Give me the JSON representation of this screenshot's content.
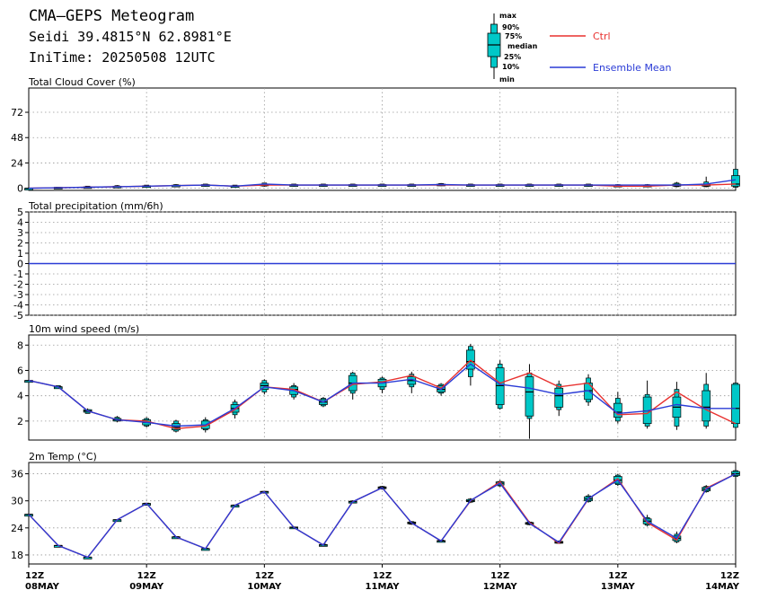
{
  "header": {
    "title": "CMA—GEPS Meteogram",
    "location": "Seidi 39.4815°N 62.8981°E",
    "init": "IniTime: 20250508 12UTC"
  },
  "legend": {
    "box_labels": [
      "max",
      "90%",
      "75%",
      "median",
      "25%",
      "10%",
      "min"
    ],
    "ctrl_label": "Ctrl",
    "mean_label": "Ensemble Mean",
    "ctrl_color": "#e8312f",
    "mean_color": "#2a3bd6",
    "box_color": "#00c8c8"
  },
  "x_axis": {
    "ticks": [
      {
        "t": 0,
        "hour": "12Z",
        "date": "08MAY"
      },
      {
        "t": 24,
        "hour": "12Z",
        "date": "09MAY"
      },
      {
        "t": 48,
        "hour": "12Z",
        "date": "10MAY"
      },
      {
        "t": 72,
        "hour": "12Z",
        "date": "11MAY"
      },
      {
        "t": 96,
        "hour": "12Z",
        "date": "12MAY"
      },
      {
        "t": 120,
        "hour": "12Z",
        "date": "13MAY"
      },
      {
        "t": 144,
        "hour": "12Z",
        "date": "14MAY"
      }
    ]
  },
  "chart_data": [
    {
      "type": "boxplot-line",
      "title": "Total Cloud Cover (%)",
      "ylim": [
        -2,
        95
      ],
      "yticks": [
        0,
        24,
        48,
        72
      ],
      "grid": true,
      "x": [
        0,
        6,
        12,
        18,
        24,
        30,
        36,
        42,
        48,
        54,
        60,
        66,
        72,
        78,
        84,
        90,
        96,
        102,
        108,
        114,
        120,
        126,
        132,
        138,
        144
      ],
      "series": [
        {
          "name": "Ctrl",
          "values": [
            0,
            0.5,
            1,
            1.5,
            2,
            2.5,
            3,
            2,
            3,
            3,
            3,
            3,
            3,
            3,
            3,
            3,
            3,
            3,
            3,
            3,
            2,
            2,
            3,
            3,
            4
          ]
        },
        {
          "name": "Ensemble Mean",
          "values": [
            0,
            0.5,
            1,
            1.5,
            2,
            2.5,
            3,
            2,
            4,
            3,
            3,
            3,
            3,
            3,
            3.5,
            3,
            3,
            3,
            3,
            3,
            3,
            3,
            3,
            4,
            8
          ]
        }
      ],
      "boxes": [
        [
          0,
          0,
          0,
          0,
          0,
          0,
          0
        ],
        [
          0,
          0,
          0,
          0.5,
          1,
          1,
          1
        ],
        [
          0,
          0,
          0.5,
          1,
          1.5,
          2,
          2
        ],
        [
          0.5,
          1,
          1.5,
          1.5,
          2,
          2.5,
          3
        ],
        [
          1,
          1.5,
          1.5,
          2,
          2.5,
          3,
          3
        ],
        [
          1,
          1.5,
          2,
          2.5,
          3,
          3.5,
          4
        ],
        [
          1.5,
          2,
          2.5,
          3,
          3.5,
          4,
          4
        ],
        [
          1,
          1.5,
          2,
          2,
          2.5,
          3,
          3
        ],
        [
          1.5,
          2,
          2.5,
          3,
          4,
          5,
          5
        ],
        [
          1.5,
          2,
          2.5,
          3,
          3.5,
          4,
          4
        ],
        [
          1.5,
          2,
          2.5,
          3,
          3.5,
          4,
          4
        ],
        [
          2,
          2,
          2.5,
          3,
          3.5,
          4,
          4
        ],
        [
          2,
          2,
          2.5,
          3,
          3.5,
          4,
          4
        ],
        [
          2,
          2,
          2.5,
          3,
          3.5,
          4,
          4
        ],
        [
          2,
          2.5,
          3,
          3,
          4,
          4.5,
          5
        ],
        [
          2,
          2,
          2.5,
          3,
          3.5,
          4,
          4
        ],
        [
          2,
          2,
          2.5,
          3,
          3.5,
          4,
          4
        ],
        [
          1.5,
          2,
          2.5,
          3,
          3.5,
          4,
          4
        ],
        [
          1.5,
          2,
          2.5,
          3,
          3.5,
          4,
          4
        ],
        [
          1.5,
          2,
          2.5,
          3,
          3.5,
          4,
          4
        ],
        [
          1,
          1.5,
          2,
          2.5,
          3,
          3.5,
          4
        ],
        [
          1,
          1.5,
          2,
          2.5,
          3,
          3.5,
          4
        ],
        [
          1,
          1.5,
          2,
          3,
          4,
          5,
          6
        ],
        [
          1,
          1.5,
          2,
          3,
          4,
          6,
          11
        ],
        [
          0,
          1,
          2,
          4,
          12,
          18,
          20
        ]
      ]
    },
    {
      "type": "boxplot-line",
      "title": "Total precipitation (mm/6h)",
      "ylim": [
        -5,
        5
      ],
      "yticks": [
        -5,
        -4,
        -3,
        -2,
        -1,
        0,
        1,
        2,
        3,
        4,
        5
      ],
      "grid": true,
      "x": [
        0,
        6,
        12,
        18,
        24,
        30,
        36,
        42,
        48,
        54,
        60,
        66,
        72,
        78,
        84,
        90,
        96,
        102,
        108,
        114,
        120,
        126,
        132,
        138,
        144
      ],
      "series": [
        {
          "name": "Ctrl",
          "values": [
            0,
            0,
            0,
            0,
            0,
            0,
            0,
            0,
            0,
            0,
            0,
            0,
            0,
            0,
            0,
            0,
            0,
            0,
            0,
            0,
            0,
            0,
            0,
            0,
            0
          ]
        },
        {
          "name": "Ensemble Mean",
          "values": [
            0,
            0,
            0,
            0,
            0,
            0,
            0,
            0,
            0,
            0,
            0,
            0,
            0,
            0,
            0,
            0,
            0,
            0,
            0,
            0,
            0,
            0,
            0,
            0,
            0
          ]
        }
      ],
      "boxes": []
    },
    {
      "type": "boxplot-line",
      "title": "10m wind speed (m/s)",
      "ylim": [
        0.5,
        8.8
      ],
      "yticks": [
        2,
        4,
        6,
        8
      ],
      "grid": true,
      "x": [
        0,
        6,
        12,
        18,
        24,
        30,
        36,
        42,
        48,
        54,
        60,
        66,
        72,
        78,
        84,
        90,
        96,
        102,
        108,
        114,
        120,
        126,
        132,
        138,
        144
      ],
      "series": [
        {
          "name": "Ctrl",
          "values": [
            5.2,
            4.7,
            2.8,
            2.1,
            2.0,
            1.4,
            1.6,
            2.9,
            4.7,
            4.5,
            3.5,
            4.9,
            5.1,
            5.6,
            4.6,
            6.8,
            5.0,
            5.8,
            4.7,
            5.0,
            2.5,
            2.6,
            4.3,
            2.9,
            1.8
          ]
        },
        {
          "name": "Ensemble Mean",
          "values": [
            5.2,
            4.7,
            2.8,
            2.1,
            1.9,
            1.6,
            1.7,
            3.0,
            4.7,
            4.4,
            3.5,
            5.0,
            5.0,
            5.3,
            4.5,
            6.5,
            4.9,
            4.6,
            4.1,
            4.4,
            2.6,
            2.8,
            3.3,
            3.0,
            3.0
          ]
        }
      ],
      "boxes": [
        [
          5.2,
          5.2,
          5.2,
          5.2,
          5.2,
          5.2,
          5.2
        ],
        [
          4.6,
          4.6,
          4.7,
          4.7,
          4.7,
          4.8,
          4.8
        ],
        [
          2.6,
          2.6,
          2.7,
          2.8,
          2.9,
          2.9,
          3.0
        ],
        [
          1.9,
          2.0,
          2.0,
          2.1,
          2.2,
          2.3,
          2.4
        ],
        [
          1.5,
          1.6,
          1.7,
          1.9,
          2.1,
          2.2,
          2.3
        ],
        [
          1.1,
          1.2,
          1.3,
          1.5,
          1.8,
          2.0,
          2.1
        ],
        [
          1.1,
          1.3,
          1.4,
          1.7,
          2.0,
          2.1,
          2.3
        ],
        [
          2.2,
          2.5,
          2.7,
          3.0,
          3.3,
          3.5,
          3.7
        ],
        [
          4.1,
          4.3,
          4.5,
          4.8,
          5.0,
          5.2,
          5.3
        ],
        [
          3.7,
          3.9,
          4.1,
          4.5,
          4.7,
          4.8,
          5.0
        ],
        [
          3.1,
          3.2,
          3.3,
          3.5,
          3.7,
          3.8,
          3.9
        ],
        [
          3.7,
          4.2,
          4.4,
          5.0,
          5.6,
          5.8,
          5.9
        ],
        [
          4.2,
          4.5,
          4.7,
          5.1,
          5.3,
          5.4,
          5.5
        ],
        [
          4.2,
          4.7,
          4.9,
          5.2,
          5.5,
          5.7,
          5.9
        ],
        [
          4.0,
          4.2,
          4.3,
          4.5,
          4.8,
          4.9,
          5.0
        ],
        [
          4.8,
          5.5,
          6.1,
          6.7,
          7.6,
          7.9,
          8.1
        ],
        [
          2.9,
          3.0,
          3.3,
          4.8,
          6.2,
          6.5,
          6.8
        ],
        [
          0.6,
          2.2,
          2.4,
          4.3,
          5.5,
          5.8,
          6.5
        ],
        [
          2.4,
          2.9,
          3.1,
          4.0,
          4.6,
          4.9,
          5.2
        ],
        [
          3.2,
          3.5,
          3.7,
          4.4,
          5.0,
          5.4,
          5.7
        ],
        [
          1.8,
          2.0,
          2.3,
          2.7,
          3.4,
          3.8,
          4.3
        ],
        [
          1.4,
          1.6,
          1.8,
          2.8,
          3.9,
          4.1,
          5.2
        ],
        [
          1.3,
          1.6,
          2.3,
          3.1,
          3.9,
          4.5,
          5.1
        ],
        [
          1.4,
          1.6,
          2.0,
          3.1,
          4.4,
          4.9,
          5.8
        ],
        [
          1.4,
          1.5,
          1.8,
          3.0,
          4.9,
          5.0,
          5.1
        ]
      ]
    },
    {
      "type": "boxplot-line",
      "title": "2m Temp (°C)",
      "ylim": [
        16,
        38.5
      ],
      "yticks": [
        18,
        24,
        30,
        36
      ],
      "grid": true,
      "x": [
        0,
        6,
        12,
        18,
        24,
        30,
        36,
        42,
        48,
        54,
        60,
        66,
        72,
        78,
        84,
        90,
        96,
        102,
        108,
        114,
        120,
        126,
        132,
        138,
        144
      ],
      "series": [
        {
          "name": "Ctrl",
          "values": [
            27.0,
            20.1,
            17.5,
            25.8,
            29.4,
            22.0,
            19.4,
            29.0,
            32.0,
            24.1,
            20.2,
            29.8,
            32.9,
            25.1,
            21.1,
            30.0,
            34.2,
            25.2,
            20.6,
            30.4,
            34.9,
            25.2,
            21.3,
            32.8,
            36.0
          ]
        },
        {
          "name": "Ensemble Mean",
          "values": [
            27.0,
            20.1,
            17.5,
            25.8,
            29.4,
            22.0,
            19.4,
            29.0,
            32.0,
            24.1,
            20.2,
            29.8,
            32.9,
            25.1,
            21.1,
            30.1,
            33.9,
            25.0,
            20.8,
            30.5,
            34.6,
            25.5,
            21.7,
            32.6,
            36.0
          ]
        }
      ],
      "boxes": [
        [
          27.0,
          27.0,
          27.0,
          27.0,
          27.0,
          27.0,
          27.0
        ],
        [
          20.1,
          20.1,
          20.1,
          20.1,
          20.1,
          20.1,
          20.1
        ],
        [
          17.5,
          17.5,
          17.5,
          17.5,
          17.5,
          17.5,
          17.5
        ],
        [
          25.8,
          25.8,
          25.8,
          25.8,
          25.8,
          25.8,
          25.8
        ],
        [
          29.3,
          29.3,
          29.4,
          29.4,
          29.4,
          29.5,
          29.5
        ],
        [
          21.9,
          21.9,
          22.0,
          22.0,
          22.0,
          22.1,
          22.1
        ],
        [
          19.3,
          19.3,
          19.4,
          19.4,
          19.4,
          19.5,
          19.5
        ],
        [
          28.9,
          28.9,
          29.0,
          29.0,
          29.0,
          29.1,
          29.1
        ],
        [
          31.8,
          31.9,
          31.9,
          32.0,
          32.1,
          32.1,
          32.2
        ],
        [
          23.9,
          24.0,
          24.0,
          24.1,
          24.2,
          24.2,
          24.3
        ],
        [
          19.9,
          20.0,
          20.1,
          20.2,
          20.3,
          20.4,
          20.5
        ],
        [
          29.5,
          29.6,
          29.7,
          29.8,
          29.9,
          30.0,
          30.1
        ],
        [
          32.5,
          32.6,
          32.7,
          32.9,
          33.1,
          33.2,
          33.3
        ],
        [
          24.7,
          24.8,
          24.9,
          25.1,
          25.3,
          25.4,
          25.5
        ],
        [
          20.8,
          20.9,
          21.0,
          21.1,
          21.2,
          21.3,
          21.4
        ],
        [
          29.5,
          29.7,
          29.8,
          30.0,
          30.3,
          30.4,
          30.6
        ],
        [
          33.1,
          33.3,
          33.5,
          33.9,
          34.2,
          34.3,
          34.6
        ],
        [
          24.6,
          24.7,
          24.8,
          25.0,
          25.2,
          25.3,
          25.5
        ],
        [
          20.5,
          20.6,
          20.7,
          20.8,
          21.0,
          21.1,
          21.2
        ],
        [
          29.6,
          29.8,
          30.0,
          30.4,
          30.9,
          31.1,
          31.5
        ],
        [
          33.3,
          33.6,
          33.9,
          34.6,
          35.4,
          35.7,
          36.0
        ],
        [
          24.3,
          24.6,
          24.9,
          25.5,
          26.0,
          26.3,
          26.9
        ],
        [
          20.6,
          20.9,
          21.2,
          21.7,
          22.2,
          22.6,
          23.2
        ],
        [
          31.8,
          32.0,
          32.2,
          32.6,
          33.0,
          33.2,
          33.5
        ],
        [
          35.2,
          35.4,
          35.6,
          36.0,
          36.5,
          36.7,
          36.9
        ]
      ]
    }
  ]
}
